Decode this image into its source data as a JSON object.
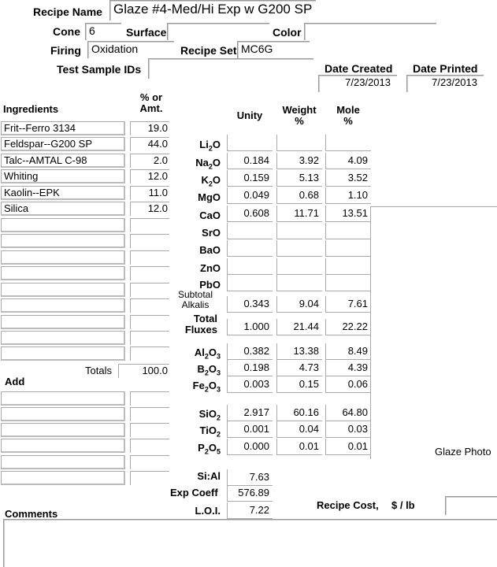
{
  "header": {
    "recipe_name_label": "Recipe Name",
    "recipe_name": "Glaze #4-Med/Hi Exp w G200 SP &",
    "cone_label": "Cone",
    "cone": "6",
    "surface_label": "Surface",
    "surface": "",
    "color_label": "Color",
    "color": "",
    "firing_label": "Firing",
    "firing": "Oxidation",
    "recipe_set_label": "Recipe Set",
    "recipe_set": "MC6G",
    "test_ids_label": "Test Sample IDs",
    "test_ids": "",
    "date_created_label": "Date Created",
    "date_created": "7/23/2013",
    "date_printed_label": "Date Printed",
    "date_printed": "7/23/2013"
  },
  "ingredients": {
    "heading": "Ingredients",
    "amt_heading_1": "% or",
    "amt_heading_2": "Amt.",
    "items": [
      {
        "name": "Frit--Ferro 3134",
        "amount": "19.0"
      },
      {
        "name": "Feldspar--G200 SP",
        "amount": "44.0"
      },
      {
        "name": "Talc--AMTAL C-98",
        "amount": "2.0"
      },
      {
        "name": "Whiting",
        "amount": "12.0"
      },
      {
        "name": "Kaolin--EPK",
        "amount": "11.0"
      },
      {
        "name": "Silica",
        "amount": "12.0"
      }
    ],
    "totals_label": "Totals",
    "total": "100.0",
    "add_label": "Add"
  },
  "analysis": {
    "unity_heading": "Unity",
    "weight_heading_1": "Weight",
    "weight_heading_2": "%",
    "mole_heading_1": "Mole",
    "mole_heading_2": "%",
    "rows": [
      {
        "oxide": "Li",
        "sub": "2",
        "tail": "O",
        "unity": "",
        "weight": "",
        "mole": ""
      },
      {
        "oxide": "Na",
        "sub": "2",
        "tail": "O",
        "unity": "0.184",
        "weight": "3.92",
        "mole": "4.09"
      },
      {
        "oxide": "K",
        "sub": "2",
        "tail": "O",
        "unity": "0.159",
        "weight": "5.13",
        "mole": "3.52"
      },
      {
        "oxide": "MgO",
        "sub": "",
        "tail": "",
        "unity": "0.049",
        "weight": "0.68",
        "mole": "1.10"
      },
      {
        "oxide": "CaO",
        "sub": "",
        "tail": "",
        "unity": "0.608",
        "weight": "11.71",
        "mole": "13.51"
      },
      {
        "oxide": "SrO",
        "sub": "",
        "tail": "",
        "unity": "",
        "weight": "",
        "mole": ""
      },
      {
        "oxide": "BaO",
        "sub": "",
        "tail": "",
        "unity": "",
        "weight": "",
        "mole": ""
      },
      {
        "oxide": "ZnO",
        "sub": "",
        "tail": "",
        "unity": "",
        "weight": "",
        "mole": ""
      },
      {
        "oxide": "PbO",
        "sub": "",
        "tail": "",
        "unity": "",
        "weight": "",
        "mole": ""
      }
    ],
    "subtotal_label_1": "Subtotal",
    "subtotal_label_2": "Alkalis",
    "subtotal": {
      "unity": "0.343",
      "weight": "9.04",
      "mole": "7.61"
    },
    "total_fluxes_label_1": "Total",
    "total_fluxes_label_2": "Fluxes",
    "total_fluxes": {
      "unity": "1.000",
      "weight": "21.44",
      "mole": "22.22"
    },
    "rows2": [
      {
        "oxide": "Al",
        "sub": "2",
        "tail": "O",
        "sub2": "3",
        "unity": "0.382",
        "weight": "13.38",
        "mole": "8.49"
      },
      {
        "oxide": "B",
        "sub": "2",
        "tail": "O",
        "sub2": "3",
        "unity": "0.198",
        "weight": "4.73",
        "mole": "4.39"
      },
      {
        "oxide": "Fe",
        "sub": "2",
        "tail": "O",
        "sub2": "3",
        "unity": "0.003",
        "weight": "0.15",
        "mole": "0.06"
      },
      {
        "oxide": "SiO",
        "sub": "2",
        "tail": "",
        "sub2": "",
        "unity": "2.917",
        "weight": "60.16",
        "mole": "64.80"
      },
      {
        "oxide": "TiO",
        "sub": "2",
        "tail": "",
        "sub2": "",
        "unity": "0.001",
        "weight": "0.04",
        "mole": "0.03"
      },
      {
        "oxide": "P",
        "sub": "2",
        "tail": "O",
        "sub2": "5",
        "unity": "0.000",
        "weight": "0.01",
        "mole": "0.01"
      }
    ],
    "si_al_label": "Si:Al",
    "si_al": "7.63",
    "exp_coeff_label": "Exp Coeff",
    "exp_coeff": "576.89",
    "loi_label": "L.O.I.",
    "loi": "7.22"
  },
  "glaze_photo_label": "Glaze Photo",
  "recipe_cost_label": "Recipe Cost,",
  "cost_unit_label": "$ / lb",
  "comments_label": "Comments"
}
